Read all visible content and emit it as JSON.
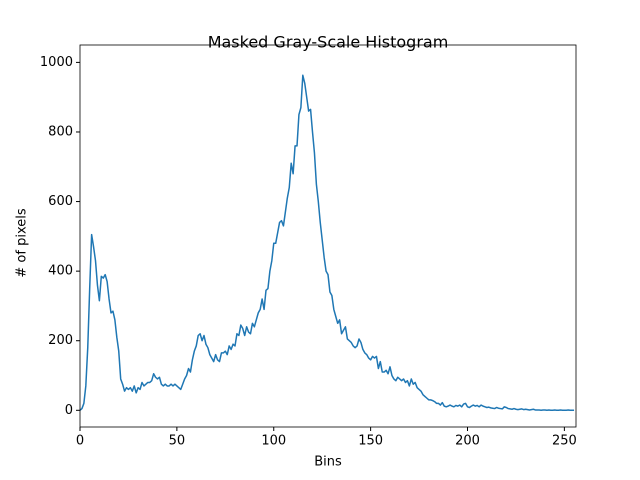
{
  "chart_data": {
    "type": "line",
    "title": "Masked Gray-Scale Histogram",
    "xlabel": "Bins",
    "ylabel": "# of pixels",
    "xlim": [
      0,
      256
    ],
    "ylim": [
      -48,
      1050
    ],
    "xticks": [
      0,
      50,
      100,
      150,
      200,
      250
    ],
    "yticks": [
      0,
      200,
      400,
      600,
      800,
      1000
    ],
    "grid": false,
    "x": [
      0,
      1,
      2,
      3,
      4,
      5,
      6,
      7,
      8,
      9,
      10,
      11,
      12,
      13,
      14,
      15,
      16,
      17,
      18,
      19,
      20,
      21,
      22,
      23,
      24,
      25,
      26,
      27,
      28,
      29,
      30,
      31,
      32,
      33,
      34,
      35,
      36,
      37,
      38,
      39,
      40,
      41,
      42,
      43,
      44,
      45,
      46,
      47,
      48,
      49,
      50,
      51,
      52,
      53,
      54,
      55,
      56,
      57,
      58,
      59,
      60,
      61,
      62,
      63,
      64,
      65,
      66,
      67,
      68,
      69,
      70,
      71,
      72,
      73,
      74,
      75,
      76,
      77,
      78,
      79,
      80,
      81,
      82,
      83,
      84,
      85,
      86,
      87,
      88,
      89,
      90,
      91,
      92,
      93,
      94,
      95,
      96,
      97,
      98,
      99,
      100,
      101,
      102,
      103,
      104,
      105,
      106,
      107,
      108,
      109,
      110,
      111,
      112,
      113,
      114,
      115,
      116,
      117,
      118,
      119,
      120,
      121,
      122,
      123,
      124,
      125,
      126,
      127,
      128,
      129,
      130,
      131,
      132,
      133,
      134,
      135,
      136,
      137,
      138,
      139,
      140,
      141,
      142,
      143,
      144,
      145,
      146,
      147,
      148,
      149,
      150,
      151,
      152,
      153,
      154,
      155,
      156,
      157,
      158,
      159,
      160,
      161,
      162,
      163,
      164,
      165,
      166,
      167,
      168,
      169,
      170,
      171,
      172,
      173,
      174,
      175,
      176,
      177,
      178,
      179,
      180,
      181,
      182,
      183,
      184,
      185,
      186,
      187,
      188,
      189,
      190,
      191,
      192,
      193,
      194,
      195,
      196,
      197,
      198,
      199,
      200,
      201,
      202,
      203,
      204,
      205,
      206,
      207,
      208,
      209,
      210,
      211,
      212,
      213,
      214,
      215,
      216,
      217,
      218,
      219,
      220,
      221,
      222,
      223,
      224,
      225,
      226,
      227,
      228,
      229,
      230,
      231,
      232,
      233,
      234,
      235,
      236,
      237,
      238,
      239,
      240,
      241,
      242,
      243,
      244,
      245,
      246,
      247,
      248,
      249,
      250,
      251,
      252,
      253,
      254,
      255
    ],
    "series": [
      {
        "name": null,
        "color": "#1f77b4",
        "values": [
          0,
          5,
          20,
          70,
          180,
          350,
          505,
          470,
          430,
          360,
          315,
          385,
          380,
          390,
          370,
          320,
          280,
          285,
          260,
          210,
          170,
          90,
          75,
          55,
          65,
          60,
          65,
          55,
          70,
          50,
          65,
          60,
          80,
          70,
          75,
          80,
          80,
          85,
          105,
          95,
          90,
          95,
          75,
          70,
          75,
          70,
          70,
          75,
          70,
          75,
          70,
          65,
          60,
          75,
          90,
          100,
          120,
          110,
          145,
          170,
          185,
          215,
          220,
          200,
          215,
          190,
          180,
          160,
          150,
          140,
          160,
          145,
          140,
          165,
          165,
          170,
          160,
          185,
          175,
          190,
          185,
          220,
          215,
          245,
          235,
          215,
          240,
          225,
          220,
          250,
          240,
          260,
          280,
          290,
          320,
          290,
          345,
          350,
          400,
          430,
          480,
          480,
          510,
          540,
          545,
          530,
          570,
          610,
          640,
          710,
          680,
          760,
          760,
          850,
          870,
          963,
          940,
          900,
          860,
          865,
          800,
          740,
          650,
          600,
          540,
          490,
          440,
          400,
          390,
          340,
          330,
          290,
          270,
          250,
          260,
          220,
          230,
          240,
          205,
          200,
          195,
          185,
          180,
          185,
          205,
          195,
          175,
          165,
          160,
          150,
          145,
          155,
          150,
          155,
          120,
          140,
          110,
          110,
          115,
          105,
          125,
          100,
          90,
          85,
          95,
          90,
          85,
          90,
          80,
          85,
          70,
          90,
          75,
          80,
          65,
          60,
          55,
          45,
          40,
          35,
          30,
          30,
          28,
          25,
          20,
          20,
          15,
          22,
          12,
          10,
          12,
          15,
          12,
          10,
          14,
          12,
          15,
          10,
          18,
          20,
          10,
          8,
          12,
          15,
          12,
          14,
          10,
          15,
          12,
          10,
          8,
          9,
          7,
          6,
          5,
          8,
          6,
          5,
          4,
          10,
          8,
          5,
          4,
          3,
          5,
          3,
          2,
          3,
          4,
          2,
          3,
          2,
          1,
          2,
          3,
          1,
          1,
          1,
          0,
          1,
          1,
          0,
          1,
          0,
          0,
          1,
          0,
          0,
          1,
          0,
          0,
          0,
          1,
          0,
          0,
          0
        ]
      }
    ]
  }
}
